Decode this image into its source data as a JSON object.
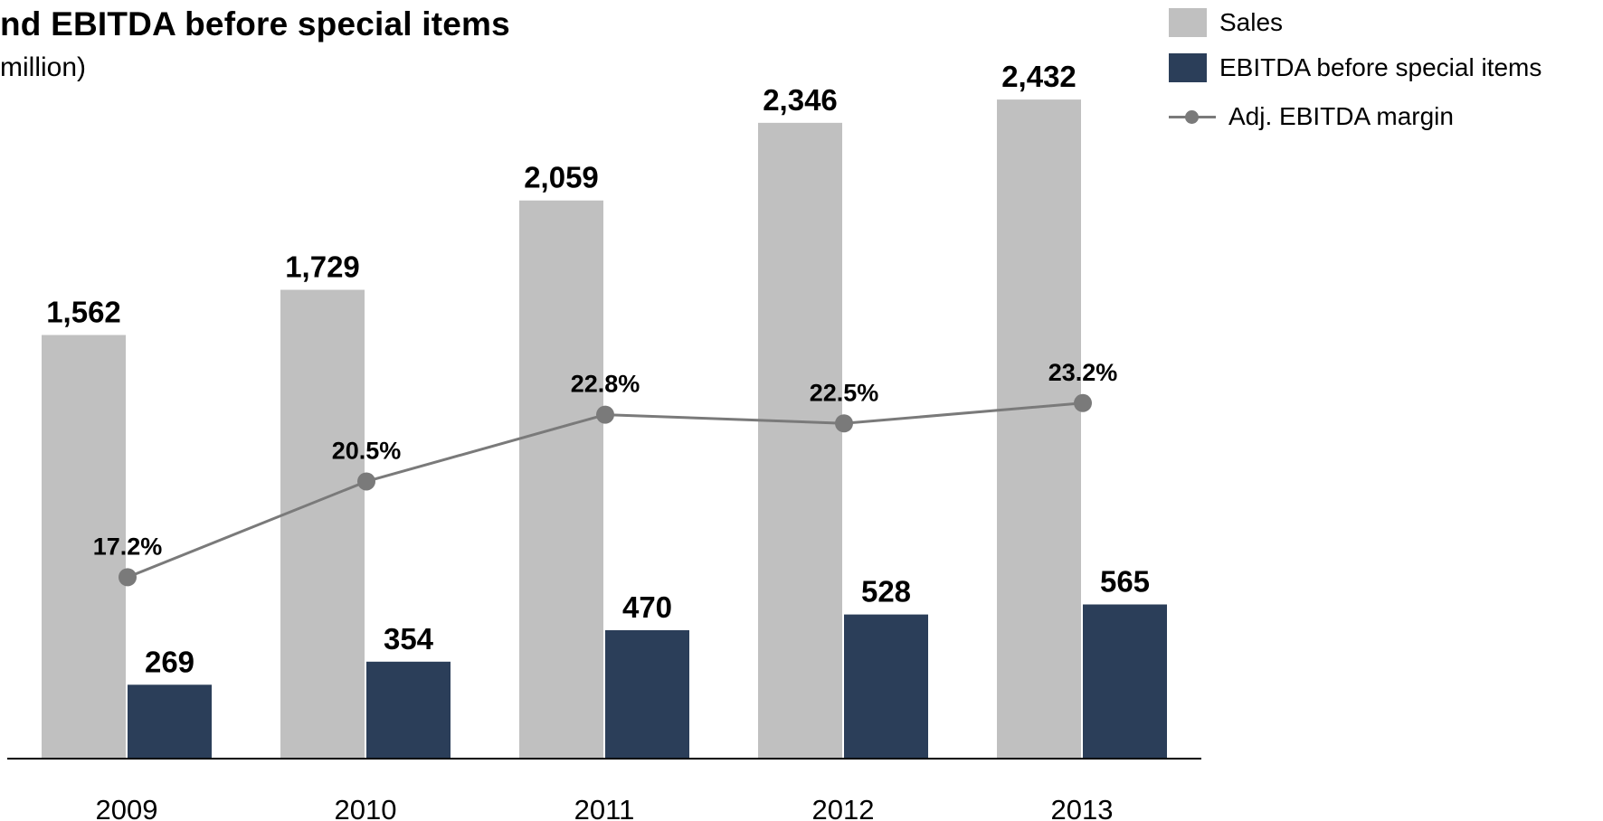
{
  "title": "nd EBITDA before special items",
  "subtitle": "million)",
  "colors": {
    "sales": "#c0c0c0",
    "ebitda": "#2b3e59",
    "margin": "#7a7a7a",
    "axis": "#000000"
  },
  "legend": {
    "sales": "Sales",
    "ebitda": "EBITDA before special items",
    "margin": "Adj. EBITDA margin"
  },
  "chart_data": {
    "type": "bar",
    "categories": [
      "2009",
      "2010",
      "2011",
      "2012",
      "2013"
    ],
    "series": [
      {
        "name": "Sales",
        "type": "bar",
        "values": [
          1562,
          1729,
          2059,
          2346,
          2432
        ],
        "labels": [
          "1,562",
          "1,729",
          "2,059",
          "2,346",
          "2,432"
        ]
      },
      {
        "name": "EBITDA before special items",
        "type": "bar",
        "values": [
          269,
          354,
          470,
          528,
          565
        ],
        "labels": [
          "269",
          "354",
          "470",
          "528",
          "565"
        ]
      },
      {
        "name": "Adj. EBITDA margin",
        "type": "line",
        "values": [
          17.2,
          20.5,
          22.8,
          22.5,
          23.2
        ],
        "labels": [
          "17.2%",
          "20.5%",
          "22.8%",
          "22.5%",
          "23.2%"
        ]
      }
    ],
    "legend_position": "top-right",
    "grid": false
  }
}
